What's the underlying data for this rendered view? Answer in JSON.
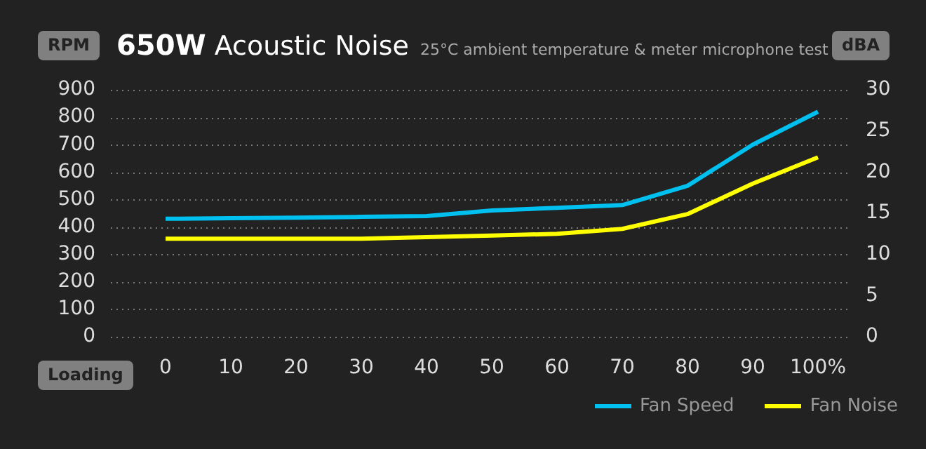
{
  "chart_data": {
    "type": "line",
    "title": "650W Acoustic Noise",
    "subtitle": "25°C ambient temperature & meter microphone test",
    "xlabel": "Loading",
    "ylabel": "RPM",
    "y2label": "dBA",
    "categories": [
      "0",
      "10",
      "20",
      "30",
      "40",
      "50",
      "60",
      "70",
      "80",
      "90",
      "100%"
    ],
    "series": [
      {
        "name": "Fan Speed",
        "color": "#00c0f0",
        "values": [
          430,
          432,
          434,
          437,
          440,
          460,
          470,
          480,
          550,
          700,
          820
        ]
      },
      {
        "name": "Fan Noise",
        "color": "#ffff00",
        "axis": "y2",
        "values": [
          11.9,
          11.9,
          11.9,
          11.9,
          12.1,
          12.3,
          12.5,
          13.1,
          14.9,
          18.6,
          21.8
        ]
      }
    ],
    "ylim": [
      0,
      900
    ],
    "yticks": [
      0,
      100,
      200,
      300,
      400,
      500,
      600,
      700,
      800,
      900
    ],
    "y2lim": [
      0,
      30
    ],
    "y2ticks": [
      0,
      5,
      10,
      15,
      20,
      25,
      30
    ],
    "grid": "y",
    "legend": "bottom right",
    "marker": "none",
    "line_style": "solid"
  }
}
